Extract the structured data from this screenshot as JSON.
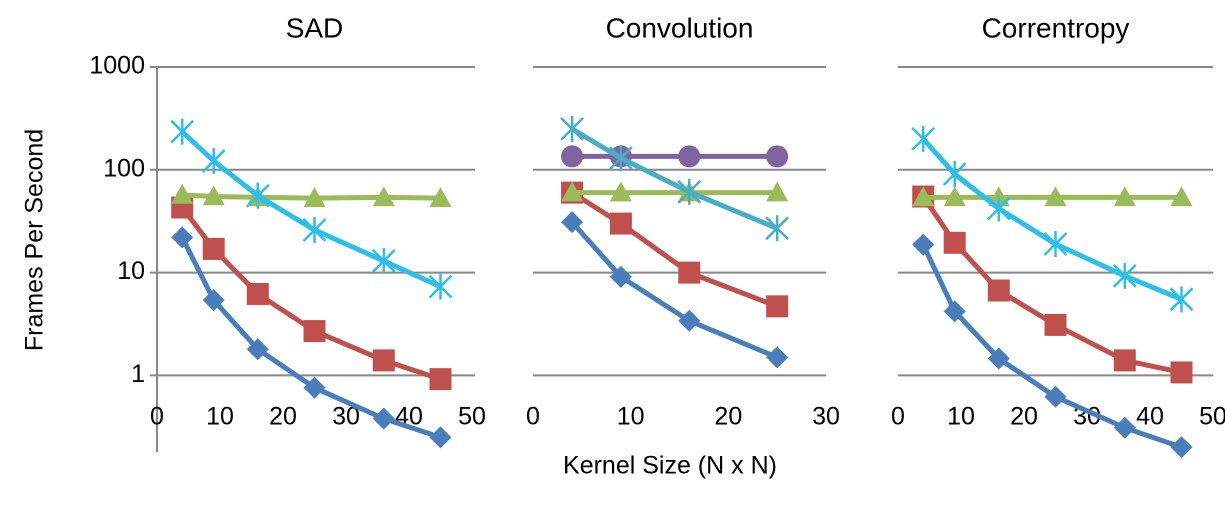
{
  "chart_data": [
    {
      "type": "line",
      "title": "SAD",
      "ylabel": "Frames Per Second",
      "yscale": "log",
      "grid": true,
      "ytick_labels": true,
      "y_axis_line": true,
      "xlim": [
        0,
        50
      ],
      "xticks": [
        0,
        10,
        20,
        30,
        40,
        50
      ],
      "ylim": [
        0.18,
        1000
      ],
      "yticks": [
        1,
        10,
        100,
        1000
      ],
      "series": [
        {
          "color": "#4a7ebb",
          "marker": "diamond",
          "x": [
            4,
            9,
            16,
            25,
            36,
            45
          ],
          "values": [
            22,
            5.4,
            1.8,
            0.76,
            0.38,
            0.25
          ]
        },
        {
          "color": "#c0504d",
          "marker": "square",
          "x": [
            4,
            9,
            16,
            25,
            36,
            45
          ],
          "values": [
            43,
            17,
            6.2,
            2.7,
            1.4,
            0.92
          ]
        },
        {
          "color": "#9bbb59",
          "marker": "triangle",
          "x": [
            4,
            9,
            16,
            25,
            36,
            45
          ],
          "values": [
            57,
            55,
            54,
            53,
            54,
            53
          ]
        },
        {
          "color": "#2ebfe8",
          "marker": "star",
          "x": [
            4,
            9,
            16,
            25,
            36,
            45
          ],
          "values": [
            235,
            122,
            56,
            26,
            13,
            7.3
          ]
        }
      ]
    },
    {
      "type": "line",
      "title": "Convolution",
      "xlabel": "Kernel Size (N x N)",
      "yscale": "log",
      "grid": true,
      "ytick_labels": false,
      "y_axis_line": false,
      "xlim": [
        0,
        30
      ],
      "xticks": [
        0,
        10,
        20,
        30
      ],
      "ylim": [
        0.18,
        1000
      ],
      "yticks": [
        1,
        10,
        100,
        1000
      ],
      "series": [
        {
          "color": "#4a7ebb",
          "marker": "diamond",
          "x": [
            4,
            9,
            16,
            25
          ],
          "values": [
            31,
            9.1,
            3.4,
            1.5
          ]
        },
        {
          "color": "#c0504d",
          "marker": "square",
          "x": [
            4,
            9,
            16,
            25
          ],
          "values": [
            60,
            30,
            10,
            4.7
          ]
        },
        {
          "color": "#8064a2",
          "marker": "circle",
          "x": [
            4,
            9,
            16,
            25
          ],
          "values": [
            135,
            135,
            135,
            135
          ]
        },
        {
          "color": "#9bbb59",
          "marker": "triangle",
          "x": [
            4,
            9,
            16,
            25
          ],
          "values": [
            60,
            60,
            60,
            60
          ]
        },
        {
          "color": "#4bacc6",
          "marker": "star",
          "x": [
            4,
            9,
            16,
            25
          ],
          "values": [
            250,
            130,
            61,
            27
          ]
        }
      ]
    },
    {
      "type": "line",
      "title": "Correntropy",
      "yscale": "log",
      "grid": true,
      "ytick_labels": false,
      "y_axis_line": false,
      "xlim": [
        0,
        50
      ],
      "xticks": [
        0,
        10,
        20,
        30,
        40,
        50
      ],
      "ylim": [
        0.18,
        1000
      ],
      "yticks": [
        1,
        10,
        100,
        1000
      ],
      "series": [
        {
          "color": "#4a7ebb",
          "marker": "diamond",
          "x": [
            4,
            9,
            16,
            25,
            36,
            45
          ],
          "values": [
            18.7,
            4.2,
            1.46,
            0.62,
            0.31,
            0.2
          ]
        },
        {
          "color": "#c0504d",
          "marker": "square",
          "x": [
            4,
            9,
            16,
            25,
            36,
            45
          ],
          "values": [
            55,
            19.5,
            6.7,
            3.1,
            1.4,
            1.07
          ]
        },
        {
          "color": "#9bbb59",
          "marker": "triangle",
          "x": [
            4,
            9,
            16,
            25,
            36,
            45
          ],
          "values": [
            54,
            54,
            54,
            54,
            54,
            54
          ]
        },
        {
          "color": "#2ebfe8",
          "marker": "star",
          "x": [
            4,
            9,
            16,
            25,
            36,
            45
          ],
          "values": [
            200,
            91,
            42,
            19,
            9.3,
            5.5
          ]
        }
      ]
    }
  ]
}
